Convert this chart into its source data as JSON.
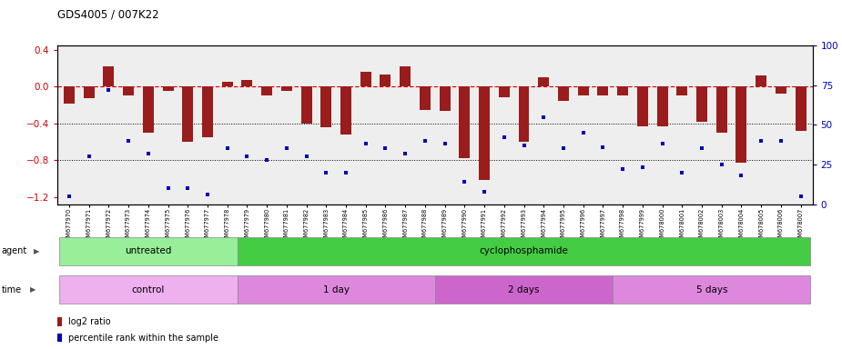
{
  "title": "GDS4005 / 007K22",
  "samples": [
    "GSM677970",
    "GSM677971",
    "GSM677972",
    "GSM677973",
    "GSM677974",
    "GSM677975",
    "GSM677976",
    "GSM677977",
    "GSM677978",
    "GSM677979",
    "GSM677980",
    "GSM677981",
    "GSM677982",
    "GSM677983",
    "GSM677984",
    "GSM677985",
    "GSM677986",
    "GSM677987",
    "GSM677988",
    "GSM677989",
    "GSM677990",
    "GSM677991",
    "GSM677992",
    "GSM677993",
    "GSM677994",
    "GSM677995",
    "GSM677996",
    "GSM677997",
    "GSM677998",
    "GSM677999",
    "GSM678000",
    "GSM678001",
    "GSM678002",
    "GSM678003",
    "GSM678004",
    "GSM678005",
    "GSM678006",
    "GSM678007"
  ],
  "log2_ratio": [
    -0.18,
    -0.13,
    0.22,
    -0.1,
    -0.5,
    -0.05,
    -0.6,
    -0.55,
    0.05,
    0.07,
    -0.1,
    -0.05,
    -0.4,
    -0.44,
    -0.52,
    0.16,
    0.13,
    0.22,
    -0.25,
    -0.26,
    -0.78,
    -1.02,
    -0.12,
    -0.6,
    0.1,
    -0.15,
    -0.1,
    -0.1,
    -0.1,
    -0.43,
    -0.43,
    -0.1,
    -0.38,
    -0.5,
    -0.83,
    0.12,
    -0.08,
    -0.48
  ],
  "percentile_rank": [
    5,
    30,
    72,
    40,
    32,
    10,
    10,
    6,
    35,
    30,
    28,
    35,
    30,
    20,
    20,
    38,
    35,
    32,
    40,
    38,
    14,
    8,
    42,
    37,
    55,
    35,
    45,
    36,
    22,
    23,
    38,
    20,
    35,
    25,
    18,
    40,
    40,
    5
  ],
  "bar_color": "#9B1C1C",
  "dot_color": "#0000BB",
  "zero_line_color": "#CC0000",
  "dotted_line_color": "#000000",
  "ylim_left": [
    -1.28,
    0.45
  ],
  "ylim_right": [
    0,
    100
  ],
  "yticks_left": [
    0.4,
    0.0,
    -0.4,
    -0.8,
    -1.2
  ],
  "yticks_right": [
    100,
    75,
    50,
    25,
    0
  ],
  "agent_groups": [
    {
      "label": "untreated",
      "start": 0,
      "end": 9,
      "color": "#99EE99"
    },
    {
      "label": "cyclophosphamide",
      "start": 9,
      "end": 38,
      "color": "#44CC44"
    }
  ],
  "time_groups": [
    {
      "label": "control",
      "start": 0,
      "end": 9,
      "color": "#EEB0EE"
    },
    {
      "label": "1 day",
      "start": 9,
      "end": 19,
      "color": "#DD88DD"
    },
    {
      "label": "2 days",
      "start": 19,
      "end": 28,
      "color": "#CC66CC"
    },
    {
      "label": "5 days",
      "start": 28,
      "end": 38,
      "color": "#DD88DD"
    }
  ],
  "legend_items": [
    {
      "label": "log2 ratio",
      "color": "#9B1C1C"
    },
    {
      "label": "percentile rank within the sample",
      "color": "#0000BB"
    }
  ],
  "bg_color": "#EEEEEE"
}
